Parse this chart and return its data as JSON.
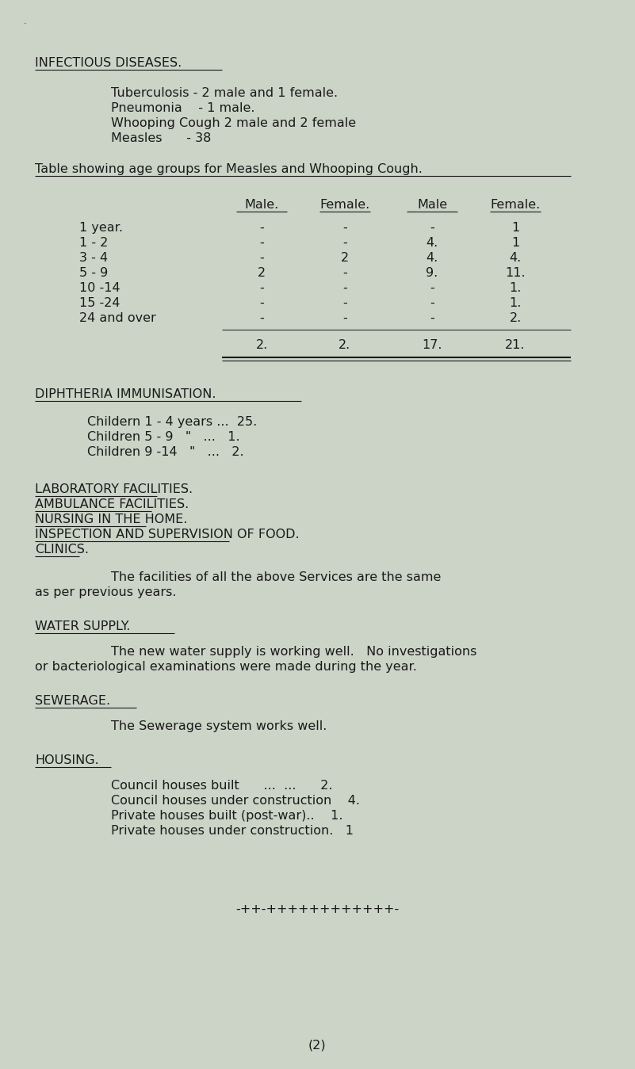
{
  "bg_color": "#ccd3c7",
  "text_color": "#1a1a1a",
  "font_family": "Courier New",
  "title_section": "INFECTIOUS DISEASES.",
  "diseases": [
    "Tuberculosis - 2 male and 1 female.",
    "Pneumonia    - 1 male.",
    "Whooping Cough 2 male and 2 female",
    "Measles      - 38"
  ],
  "table_title": "Table showing age groups for Measles and Whooping Cough.",
  "table_col_headers": [
    "Male.",
    "Female.",
    "Male",
    "Female."
  ],
  "table_row_labels": [
    "1 year.",
    "1 - 2",
    "3 - 4",
    "5 - 9",
    "10 -14",
    "15 -24",
    "24 and over"
  ],
  "table_data": [
    [
      "-",
      "-",
      "-",
      "1"
    ],
    [
      "-",
      "-",
      "4.",
      "1"
    ],
    [
      "-",
      "2",
      "4.",
      "4."
    ],
    [
      "2",
      "-",
      "9.",
      "11."
    ],
    [
      "-",
      "-",
      "-",
      "1."
    ],
    [
      "-",
      "-",
      "-",
      "1."
    ],
    [
      "-",
      "-",
      "-",
      "2."
    ]
  ],
  "table_totals": [
    "2.",
    "2.",
    "17.",
    "21."
  ],
  "diphtheria_title": "DIPHTHERIA IMMUNISATION.",
  "diphtheria_lines": [
    "Childern 1 - 4 years ...  25.",
    "Children 5 - 9   \"   ...   1.",
    "Children 9 -14   \"   ...   2."
  ],
  "underlined_sections": [
    "LABORATORY FACILITIES.",
    "AMBULANCE FACILITIES.",
    "NURSING IN THE HOME.",
    "INSPECTION AND SUPERVISION OF FOOD.",
    "CLINICS."
  ],
  "facilities_line1": "The facilities of all the above Services are the same",
  "facilities_line2": "as per previous years.",
  "water_title": "WATER SUPPLY.",
  "water_line1": "The new water supply is working well.   No investigations",
  "water_line2": "or bacteriological examinations were made during the year.",
  "sewerage_title": "SEWERAGE.",
  "sewerage_text": "The Sewerage system works well.",
  "housing_title": "HOUSING.",
  "housing_lines": [
    "Council houses built      ...  ...      2.",
    "Council houses under construction    4.",
    "Private houses built (post-war)..    1.",
    "Private houses under construction.   1"
  ],
  "footer": "-++-++++++++++++-",
  "page_num": "(2)"
}
